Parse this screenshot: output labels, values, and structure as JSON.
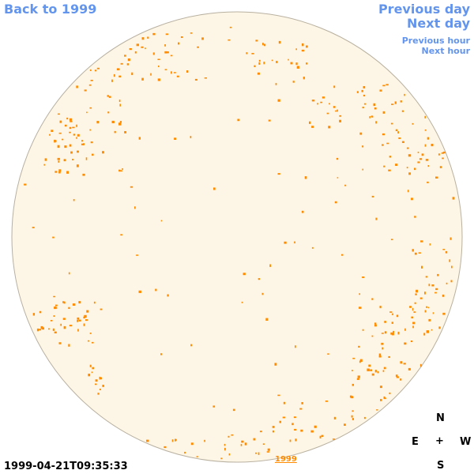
{
  "nav": {
    "back": "Back to 1999",
    "previous_day": "Previous day",
    "next_day": "Next day",
    "previous_hour": "Previous hour",
    "next_hour": "Next hour"
  },
  "timestamp": "1999-04-21T09:35:33",
  "year_label": "1999",
  "compass": {
    "north": "N",
    "east": "E",
    "center": "+",
    "west": "W",
    "south": "S"
  },
  "colors": {
    "link": "#6495ed",
    "disk_fill": "#fdf6e6",
    "disk_border": "#b8b0a0",
    "feature": "#ff8c00"
  }
}
